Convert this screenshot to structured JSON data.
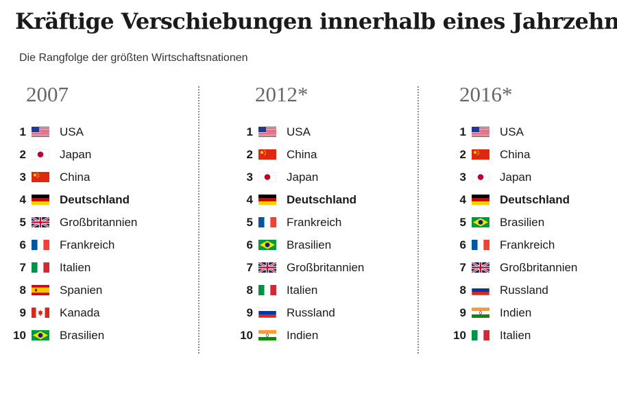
{
  "chart_data": {
    "type": "table",
    "title": "Kräftige Verschiebungen innerhalb eines Jahrzehnts",
    "subtitle": "Die Rangfolge der größten Wirtschaftsnationen",
    "highlight": "Deutschland",
    "columns": [
      {
        "year": "2007",
        "rows": [
          {
            "rank": "1",
            "country": "USA",
            "flag": "us-flag-icon"
          },
          {
            "rank": "2",
            "country": "Japan",
            "flag": "jp-flag-icon"
          },
          {
            "rank": "3",
            "country": "China",
            "flag": "cn-flag-icon"
          },
          {
            "rank": "4",
            "country": "Deutschland",
            "flag": "de-flag-icon"
          },
          {
            "rank": "5",
            "country": "Großbritannien",
            "flag": "gb-flag-icon"
          },
          {
            "rank": "6",
            "country": "Frankreich",
            "flag": "fr-flag-icon"
          },
          {
            "rank": "7",
            "country": "Italien",
            "flag": "it-flag-icon"
          },
          {
            "rank": "8",
            "country": "Spanien",
            "flag": "es-flag-icon"
          },
          {
            "rank": "9",
            "country": "Kanada",
            "flag": "ca-flag-icon"
          },
          {
            "rank": "10",
            "country": "Brasilien",
            "flag": "br-flag-icon"
          }
        ]
      },
      {
        "year": "2012*",
        "rows": [
          {
            "rank": "1",
            "country": "USA",
            "flag": "us-flag-icon"
          },
          {
            "rank": "2",
            "country": "China",
            "flag": "cn-flag-icon"
          },
          {
            "rank": "3",
            "country": "Japan",
            "flag": "jp-flag-icon"
          },
          {
            "rank": "4",
            "country": "Deutschland",
            "flag": "de-flag-icon"
          },
          {
            "rank": "5",
            "country": "Frankreich",
            "flag": "fr-flag-icon"
          },
          {
            "rank": "6",
            "country": "Brasilien",
            "flag": "br-flag-icon"
          },
          {
            "rank": "7",
            "country": "Großbritannien",
            "flag": "gb-flag-icon"
          },
          {
            "rank": "8",
            "country": "Italien",
            "flag": "it-flag-icon"
          },
          {
            "rank": "9",
            "country": "Russland",
            "flag": "ru-flag-icon"
          },
          {
            "rank": "10",
            "country": "Indien",
            "flag": "in-flag-icon"
          }
        ]
      },
      {
        "year": "2016*",
        "rows": [
          {
            "rank": "1",
            "country": "USA",
            "flag": "us-flag-icon"
          },
          {
            "rank": "2",
            "country": "China",
            "flag": "cn-flag-icon"
          },
          {
            "rank": "3",
            "country": "Japan",
            "flag": "jp-flag-icon"
          },
          {
            "rank": "4",
            "country": "Deutschland",
            "flag": "de-flag-icon"
          },
          {
            "rank": "5",
            "country": "Brasilien",
            "flag": "br-flag-icon"
          },
          {
            "rank": "6",
            "country": "Frankreich",
            "flag": "fr-flag-icon"
          },
          {
            "rank": "7",
            "country": "Großbritannien",
            "flag": "gb-flag-icon"
          },
          {
            "rank": "8",
            "country": "Russland",
            "flag": "ru-flag-icon"
          },
          {
            "rank": "9",
            "country": "Indien",
            "flag": "in-flag-icon"
          },
          {
            "rank": "10",
            "country": "Italien",
            "flag": "it-flag-icon"
          }
        ]
      }
    ]
  }
}
